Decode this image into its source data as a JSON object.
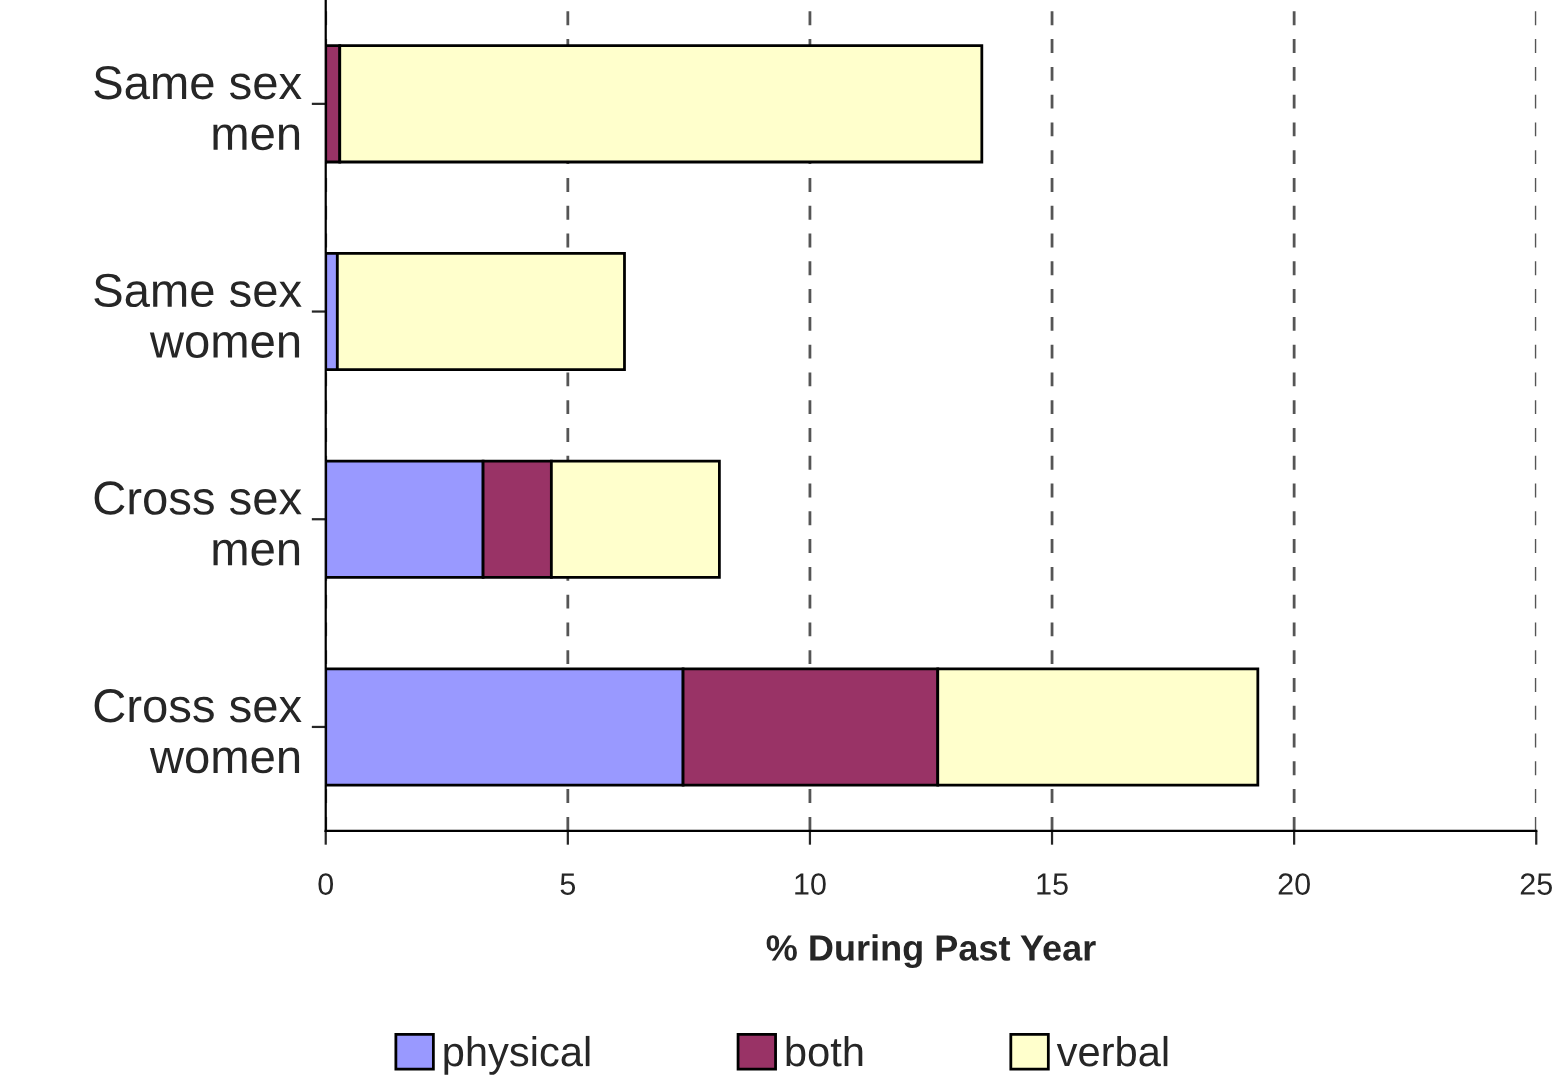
{
  "chart_data": {
    "type": "bar",
    "orientation": "horizontal",
    "stacked": true,
    "xlabel": "% During Past Year",
    "categories": [
      "Same sex\nmen",
      "Same sex\nwomen",
      "Cross sex\nmen",
      "Cross sex\nwomen"
    ],
    "series": [
      {
        "name": "physical",
        "color": "#9999ff",
        "values": [
          0,
          0.24,
          3.25,
          7.38
        ]
      },
      {
        "name": "both",
        "color": "#993366",
        "values": [
          0.29,
          0,
          1.41,
          5.26
        ]
      },
      {
        "name": "verbal",
        "color": "#ffffcc",
        "values": [
          13.26,
          5.93,
          3.47,
          6.61
        ]
      }
    ],
    "xlim": [
      0,
      25
    ],
    "xticks": [
      0,
      5,
      10,
      15,
      20,
      25
    ],
    "grid": "x",
    "legend": "bottom"
  }
}
